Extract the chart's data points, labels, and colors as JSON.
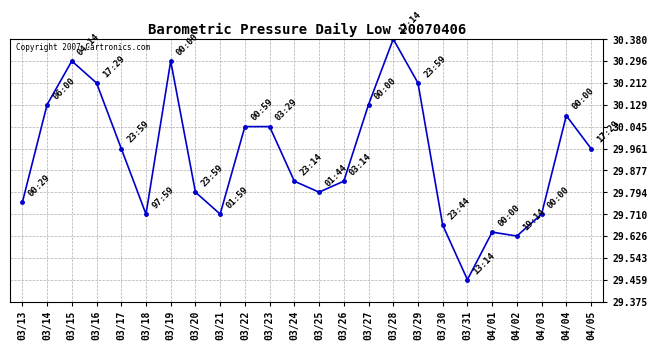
{
  "title": "Barometric Pressure Daily Low 20070406",
  "copyright": "Copyright 2007 Cartronics.com",
  "x_labels": [
    "03/13",
    "03/14",
    "03/15",
    "03/16",
    "03/17",
    "03/18",
    "03/19",
    "03/20",
    "03/21",
    "03/22",
    "03/23",
    "03/24",
    "03/25",
    "03/26",
    "03/27",
    "03/28",
    "03/29",
    "03/30",
    "03/31",
    "04/01",
    "04/02",
    "04/03",
    "04/04",
    "04/05"
  ],
  "y_values": [
    29.755,
    30.129,
    30.296,
    30.212,
    29.961,
    29.71,
    30.296,
    29.794,
    29.71,
    30.045,
    30.045,
    29.836,
    29.794,
    29.836,
    30.129,
    30.38,
    30.212,
    29.668,
    29.459,
    29.641,
    29.626,
    29.71,
    30.087,
    29.961
  ],
  "point_labels": [
    "00:29",
    "06:00",
    "04:14",
    "17:29",
    "23:59",
    "97:59",
    "00:00",
    "23:59",
    "01:59",
    "00:59",
    "03:29",
    "23:14",
    "01:44",
    "03:14",
    "00:00",
    "17:14",
    "23:59",
    "23:44",
    "13:14",
    "00:00",
    "19:14",
    "00:00",
    "00:00",
    "17:29"
  ],
  "ylim_min": 29.375,
  "ylim_max": 30.38,
  "yticks": [
    29.375,
    29.459,
    29.543,
    29.626,
    29.71,
    29.794,
    29.877,
    29.961,
    30.045,
    30.129,
    30.212,
    30.296,
    30.38
  ],
  "line_color": "#0000CC",
  "marker_color": "#0000CC",
  "bg_color": "#ffffff",
  "plot_bg_color": "#ffffff",
  "grid_color": "#999999",
  "title_fontsize": 10,
  "tick_fontsize": 7,
  "point_label_fontsize": 6.5
}
